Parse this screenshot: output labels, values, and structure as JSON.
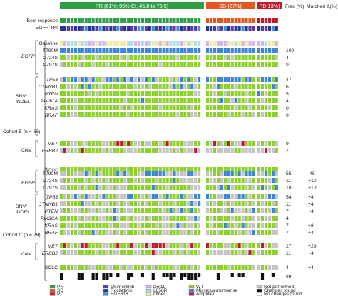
{
  "header": {
    "pr": "PR (61%; 95% CI, 46.8 to 73.5)",
    "sd": "SD (27%)",
    "pd": "PD 13%)",
    "freq": "Freq (%)",
    "matched": "Matched Δ(%)"
  },
  "top_rows": [
    "Best response",
    "EGFR TKI"
  ],
  "cohort_b": {
    "label": "Cohort B (n = 56)",
    "groups": [
      {
        "name": "EGFR",
        "rows": [
          "Baseline",
          "T790M",
          "G724S",
          "C797S"
        ]
      },
      {
        "name": "SNV/ INDEL",
        "rows": [
          "TP53",
          "CTNNB1",
          "PTEN",
          "PIK3CA",
          "KRAS",
          "BRAF"
        ]
      },
      {
        "name": "CNV",
        "rows": [
          "MET",
          "ERBB2"
        ]
      },
      {
        "name": "",
        "rows": [
          "SCLC"
        ]
      }
    ],
    "freq": [
      "",
      "100",
      "4",
      "0",
      "47",
      "6",
      "5",
      "4",
      "0",
      "0",
      "9",
      "7",
      ""
    ],
    "matched": [
      "",
      "",
      "",
      "",
      "",
      "",
      "",
      "",
      "",
      "",
      "",
      "",
      ""
    ]
  },
  "cohort_c": {
    "label": "Cohort C (n = 29)",
    "groups": [
      {
        "name": "EGFR",
        "rows": [
          "T790M",
          "G724S",
          "C797S"
        ]
      },
      {
        "name": "SNV/ INDEL",
        "rows": [
          "TP53",
          "CTNNB1",
          "PTEN",
          "PIK3CA",
          "KRAS",
          "BRAF"
        ]
      },
      {
        "name": "CNV",
        "rows": [
          "MET",
          "ERBB2"
        ]
      },
      {
        "name": "",
        "rows": [
          "SCLC"
        ]
      }
    ],
    "freq": [
      "55",
      "11",
      "10",
      "54",
      "11",
      "7",
      "4",
      "7",
      "7",
      "27",
      "11",
      "4"
    ],
    "matched": [
      "-45",
      "+10",
      "+10",
      "+4",
      "+4",
      "+4",
      "",
      "+8",
      "+4",
      "+29",
      "+4",
      "+4"
    ]
  },
  "bottom_freq": "89",
  "legend": [
    {
      "label": "PR",
      "color": "#2e9e46"
    },
    {
      "label": "SD",
      "color": "#e0571f"
    },
    {
      "label": "PD",
      "color": "#c01b2b"
    },
    {
      "label": "Osimertinib",
      "color": "#5b3aa0"
    },
    {
      "label": "Rociletinib",
      "color": "#24339a"
    },
    {
      "label": "EGF816",
      "color": "#3f8fd6"
    },
    {
      "label": "Del19",
      "color": "#d6b3e8"
    },
    {
      "label": "L858R",
      "color": "#a9dff0"
    },
    {
      "label": "Other",
      "color": "#f3e9a2"
    },
    {
      "label": "WT",
      "color": "#8cd12b"
    },
    {
      "label": "Missense/nonsense",
      "color": "#3b84d9"
    },
    {
      "label": "Amplified",
      "color": "#c01b2b"
    },
    {
      "label": "Not performed",
      "color": "#c4c4c4"
    },
    {
      "label": "Changes found",
      "color": "#111111"
    },
    {
      "label": "No changes found",
      "color": "#ffffff"
    }
  ],
  "colors": {
    "pr": "#2e9e46",
    "sd": "#e0571f",
    "pd": "#c01b2b",
    "wt": "#8cd12b",
    "missense": "#3b84d9",
    "amplified": "#c01b2b",
    "not_performed": "#c4c4c4",
    "osimertinib": "#5b3aa0",
    "rociletinib": "#24339a",
    "egf816": "#3f8fd6",
    "del19": "#d6b3e8",
    "l858r": "#a9dff0",
    "other": "#f3e9a2",
    "changes": "#111111"
  }
}
